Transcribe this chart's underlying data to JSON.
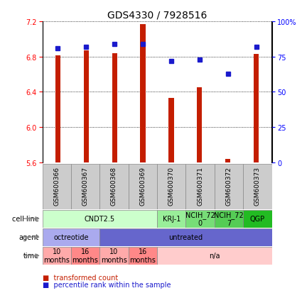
{
  "title": "GDS4330 / 7928516",
  "samples": [
    "GSM600366",
    "GSM600367",
    "GSM600368",
    "GSM600369",
    "GSM600370",
    "GSM600371",
    "GSM600372",
    "GSM600373"
  ],
  "bar_values": [
    6.81,
    6.87,
    6.84,
    7.17,
    6.33,
    6.45,
    5.64,
    6.83
  ],
  "percentile_values": [
    81,
    82,
    84,
    84,
    72,
    73,
    63,
    82
  ],
  "ylim_left": [
    5.6,
    7.2
  ],
  "ylim_right": [
    0,
    100
  ],
  "yticks_left": [
    5.6,
    6.0,
    6.4,
    6.8,
    7.2
  ],
  "yticks_right": [
    0,
    25,
    50,
    75,
    100
  ],
  "ytick_labels_right": [
    "0",
    "25",
    "50",
    "75",
    "100%"
  ],
  "bar_color": "#C41E00",
  "dot_color": "#1A1ACC",
  "cell_line_groups": [
    {
      "label": "CNDT2.5",
      "start": 0,
      "end": 4,
      "color": "#CCFFCC"
    },
    {
      "label": "KRJ-1",
      "start": 4,
      "end": 5,
      "color": "#99EE99"
    },
    {
      "label": "NCIH_72\n0",
      "start": 5,
      "end": 6,
      "color": "#77DD77"
    },
    {
      "label": "NCIH_72\n7",
      "start": 6,
      "end": 7,
      "color": "#55CC55"
    },
    {
      "label": "QGP",
      "start": 7,
      "end": 8,
      "color": "#22BB22"
    }
  ],
  "agent_groups": [
    {
      "label": "octreotide",
      "start": 0,
      "end": 2,
      "color": "#AAAAEE"
    },
    {
      "label": "untreated",
      "start": 2,
      "end": 8,
      "color": "#6666CC"
    }
  ],
  "time_groups": [
    {
      "label": "10\nmonths",
      "start": 0,
      "end": 1,
      "color": "#FFAAAA"
    },
    {
      "label": "16\nmonths",
      "start": 1,
      "end": 2,
      "color": "#FF8888"
    },
    {
      "label": "10\nmonths",
      "start": 2,
      "end": 3,
      "color": "#FFAAAA"
    },
    {
      "label": "16\nmonths",
      "start": 3,
      "end": 4,
      "color": "#FF8888"
    },
    {
      "label": "n/a",
      "start": 4,
      "end": 8,
      "color": "#FFCCCC"
    }
  ],
  "row_labels": [
    "cell line",
    "agent",
    "time"
  ],
  "legend_items": [
    {
      "color": "#C41E00",
      "label": "transformed count"
    },
    {
      "color": "#1A1ACC",
      "label": "percentile rank within the sample"
    }
  ],
  "bar_width": 0.18,
  "dot_size": 5,
  "label_fontsize": 6.5,
  "row_fontsize": 7,
  "title_fontsize": 10,
  "ytick_fontsize": 7,
  "row_label_fontsize": 7
}
